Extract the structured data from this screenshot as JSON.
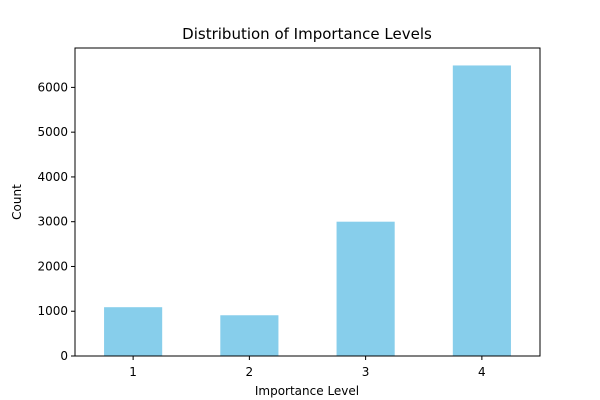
{
  "chart_data": {
    "type": "bar",
    "title": "Distribution of Importance Levels",
    "xlabel": "Importance Level",
    "ylabel": "Count",
    "categories": [
      "1",
      "2",
      "3",
      "4"
    ],
    "values": [
      1090,
      910,
      3000,
      6490
    ],
    "ylim": [
      0,
      6880
    ],
    "yticks": [
      0,
      1000,
      2000,
      3000,
      4000,
      5000,
      6000
    ],
    "bar_color": "#87CEEB",
    "grid": false,
    "legend": false
  }
}
